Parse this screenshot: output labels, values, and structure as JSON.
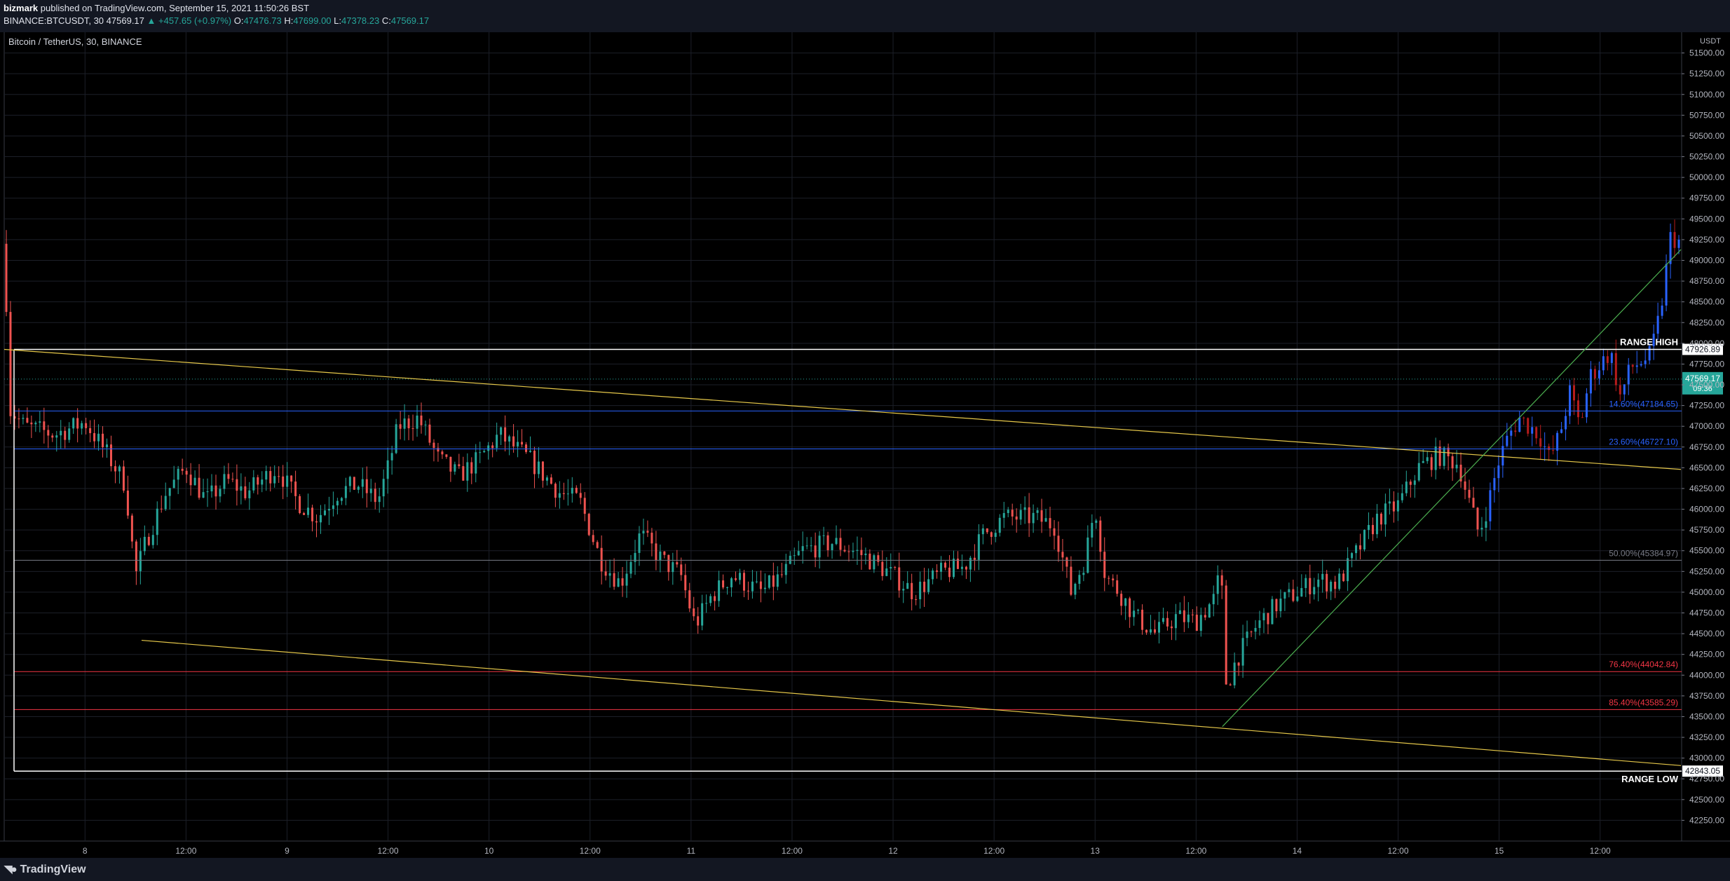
{
  "header": {
    "author": "bizmark",
    "published_text": "published on TradingView.com, September 15, 2021 11:50:26 BST",
    "symbol_line": "BINANCE:BTCUSDT, 30",
    "last": "47569.17",
    "change": "▲ +457.65 (+0.97%)",
    "o_label": "O:",
    "o_value": "47476.73",
    "h_label": "H:",
    "h_value": "47699.00",
    "l_label": "L:",
    "l_value": "47378.23",
    "c_label": "C:",
    "c_value": "47569.17"
  },
  "footer": {
    "brand": "TradingView",
    "brand_icon": "tradingview-logo-icon"
  },
  "chart_data": {
    "type": "candlestick",
    "title": "Bitcoin / TetherUS, 30, BINANCE",
    "currency": "USDT",
    "ylim": [
      42000,
      51750
    ],
    "y_ticks": [
      42250,
      42500,
      42750,
      43000,
      43250,
      43500,
      43750,
      44000,
      44250,
      44500,
      44750,
      45000,
      45250,
      45500,
      45750,
      46000,
      46250,
      46500,
      46750,
      47000,
      47250,
      47500,
      47750,
      48000,
      48250,
      48500,
      48750,
      49000,
      49250,
      49500,
      49750,
      50000,
      50250,
      50500,
      50750,
      51000,
      51250,
      51500
    ],
    "x_ticks": [
      {
        "label": "8",
        "t": 0.5
      },
      {
        "label": "12:00",
        "t": 1.0
      },
      {
        "label": "9",
        "t": 1.5
      },
      {
        "label": "12:00",
        "t": 2.0
      },
      {
        "label": "10",
        "t": 2.5
      },
      {
        "label": "12:00",
        "t": 3.0
      },
      {
        "label": "11",
        "t": 3.5
      },
      {
        "label": "12:00",
        "t": 4.0
      },
      {
        "label": "12",
        "t": 4.5
      },
      {
        "label": "12:00",
        "t": 5.0
      },
      {
        "label": "13",
        "t": 5.5
      },
      {
        "label": "12:00",
        "t": 6.0
      },
      {
        "label": "14",
        "t": 6.5
      },
      {
        "label": "12:00",
        "t": 7.0
      },
      {
        "label": "15",
        "t": 7.5
      },
      {
        "label": "12:00",
        "t": 8.0
      }
    ],
    "xlim": [
      0.1,
      8.4
    ],
    "last_price": {
      "value": 47569.17,
      "label": "47569.17",
      "countdown": "09:36"
    },
    "levels": [
      {
        "name": "range-high",
        "value": 47926.89,
        "color": "#ffffff",
        "label": "RANGE HIGH",
        "axis_label": "47926.89"
      },
      {
        "name": "fib-14-6",
        "value": 47184.65,
        "color": "#2962ff",
        "label": "14.60%(47184.65)"
      },
      {
        "name": "fib-23-6",
        "value": 46727.1,
        "color": "#2962ff",
        "label": "23.60%(46727.10)"
      },
      {
        "name": "fib-50",
        "value": 45384.97,
        "color": "#787b86",
        "label": "50.00%(45384.97)"
      },
      {
        "name": "fib-76-4",
        "value": 44042.84,
        "color": "#f23645",
        "label": "76.40%(44042.84)"
      },
      {
        "name": "fib-85-4",
        "value": 43585.29,
        "color": "#f23645",
        "label": "85.40%(43585.29)"
      },
      {
        "name": "range-low",
        "value": 42843.05,
        "color": "#ffffff",
        "label": "RANGE LOW",
        "axis_label": "42843.05"
      }
    ],
    "trendlines": [
      {
        "name": "upper-trendline",
        "color": "#e6c84a",
        "x1": 0.1,
        "y1": 47926.89,
        "x2": 8.4,
        "y2": 46480
      },
      {
        "name": "lower-trendline",
        "color": "#e6c84a",
        "x1": 0.78,
        "y1": 44420,
        "x2": 8.4,
        "y2": 42910
      },
      {
        "name": "rising-trendline",
        "color": "#4caf50",
        "x1": 6.13,
        "y1": 43380,
        "x2": 8.4,
        "y2": 49130
      }
    ],
    "path": [
      [
        0.1,
        49200
      ],
      [
        0.13,
        47200
      ],
      [
        0.2,
        47000
      ],
      [
        0.35,
        46900
      ],
      [
        0.5,
        47050
      ],
      [
        0.6,
        46700
      ],
      [
        0.7,
        46300
      ],
      [
        0.75,
        45200
      ],
      [
        0.8,
        45600
      ],
      [
        0.9,
        46200
      ],
      [
        1.0,
        46500
      ],
      [
        1.1,
        46100
      ],
      [
        1.2,
        46350
      ],
      [
        1.3,
        46200
      ],
      [
        1.45,
        46500
      ],
      [
        1.55,
        46100
      ],
      [
        1.65,
        45900
      ],
      [
        1.75,
        46200
      ],
      [
        1.85,
        46300
      ],
      [
        1.95,
        46100
      ],
      [
        2.0,
        46500
      ],
      [
        2.05,
        47000
      ],
      [
        2.15,
        47100
      ],
      [
        2.25,
        46600
      ],
      [
        2.35,
        46400
      ],
      [
        2.45,
        46600
      ],
      [
        2.55,
        46900
      ],
      [
        2.7,
        46600
      ],
      [
        2.85,
        46200
      ],
      [
        2.95,
        46100
      ],
      [
        3.05,
        45400
      ],
      [
        3.15,
        45100
      ],
      [
        3.25,
        45700
      ],
      [
        3.35,
        45400
      ],
      [
        3.45,
        45200
      ],
      [
        3.52,
        44600
      ],
      [
        3.6,
        44950
      ],
      [
        3.7,
        45200
      ],
      [
        3.85,
        45000
      ],
      [
        3.95,
        45200
      ],
      [
        4.05,
        45500
      ],
      [
        4.2,
        45600
      ],
      [
        4.35,
        45450
      ],
      [
        4.5,
        45200
      ],
      [
        4.6,
        45000
      ],
      [
        4.75,
        45250
      ],
      [
        4.85,
        45300
      ],
      [
        4.95,
        45700
      ],
      [
        5.05,
        45900
      ],
      [
        5.2,
        45900
      ],
      [
        5.3,
        45800
      ],
      [
        5.38,
        45000
      ],
      [
        5.45,
        45400
      ],
      [
        5.5,
        46050
      ],
      [
        5.55,
        45200
      ],
      [
        5.62,
        45000
      ],
      [
        5.7,
        44700
      ],
      [
        5.8,
        44500
      ],
      [
        5.9,
        44700
      ],
      [
        6.0,
        44650
      ],
      [
        6.1,
        44950
      ],
      [
        6.12,
        45400
      ],
      [
        6.15,
        43850
      ],
      [
        6.2,
        44200
      ],
      [
        6.3,
        44600
      ],
      [
        6.4,
        44850
      ],
      [
        6.5,
        45000
      ],
      [
        6.6,
        45150
      ],
      [
        6.7,
        45100
      ],
      [
        6.8,
        45500
      ],
      [
        6.9,
        45900
      ],
      [
        7.0,
        46050
      ],
      [
        7.1,
        46500
      ],
      [
        7.2,
        46650
      ],
      [
        7.3,
        46550
      ],
      [
        7.35,
        46100
      ],
      [
        7.4,
        45700
      ],
      [
        7.45,
        46100
      ],
      [
        7.5,
        46600
      ],
      [
        7.55,
        46900
      ],
      [
        7.6,
        47100
      ],
      [
        7.7,
        46900
      ],
      [
        7.75,
        46600
      ],
      [
        7.8,
        46900
      ],
      [
        7.85,
        47400
      ],
      [
        7.9,
        47000
      ],
      [
        7.95,
        47600
      ],
      [
        8.05,
        47900
      ],
      [
        8.1,
        47350
      ],
      [
        8.15,
        47700
      ],
      [
        8.25,
        47850
      ],
      [
        8.3,
        48400
      ],
      [
        8.35,
        49300
      ],
      [
        8.4,
        49200
      ]
    ]
  }
}
